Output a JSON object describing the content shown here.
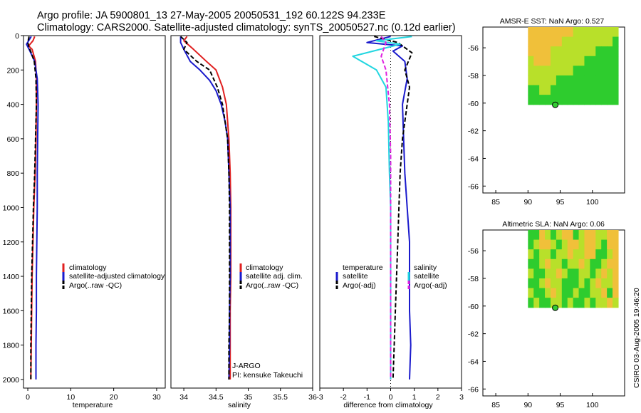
{
  "header": {
    "line1": "Argo profile: JA 5900801_13 27-May-2005 20050531_192 60.122S 94.233E",
    "line2": "Climatology: CARS2000. Satellite-adjusted climatology: synTS_20050527.nc (0.12d earlier)"
  },
  "stamp": "CSIRO 03-Aug-2005 19:46:20",
  "chart_data": [
    {
      "type": "line",
      "name": "temperature-profile",
      "xlabel": "temperature",
      "xlim": [
        -1,
        32
      ],
      "ylim": [
        2050,
        0
      ],
      "xticks": [
        0,
        10,
        20,
        30
      ],
      "yticks": [
        0,
        200,
        400,
        600,
        800,
        1000,
        1200,
        1400,
        1600,
        1800,
        2000
      ],
      "legend": [
        "climatology",
        "satellite-adjusted climatology",
        "Argo(..raw -QC)"
      ],
      "series": [
        {
          "name": "climatology",
          "color": "#e02020",
          "dash": false,
          "points": [
            [
              1.6,
              5
            ],
            [
              1.2,
              30
            ],
            [
              0.2,
              60
            ],
            [
              1.0,
              80
            ],
            [
              1.8,
              150
            ],
            [
              2.0,
              250
            ],
            [
              2.0,
              400
            ],
            [
              1.9,
              600
            ],
            [
              1.7,
              800
            ],
            [
              1.4,
              1000
            ],
            [
              1.2,
              1200
            ],
            [
              1.0,
              1400
            ],
            [
              0.9,
              1600
            ],
            [
              0.8,
              1800
            ],
            [
              0.7,
              2000
            ]
          ]
        },
        {
          "name": "satellite-adjusted climatology",
          "color": "#1a1acc",
          "dash": false,
          "points": [
            [
              0.8,
              5
            ],
            [
              -0.3,
              50
            ],
            [
              0.5,
              90
            ],
            [
              1.6,
              150
            ],
            [
              2.2,
              250
            ],
            [
              2.4,
              400
            ],
            [
              2.3,
              600
            ],
            [
              2.2,
              800
            ],
            [
              2.2,
              1000
            ],
            [
              2.1,
              1200
            ],
            [
              2.0,
              1400
            ],
            [
              2.0,
              1600
            ],
            [
              1.9,
              1800
            ],
            [
              1.9,
              2000
            ]
          ]
        },
        {
          "name": "Argo(..raw -QC)",
          "color": "#000000",
          "dash": true,
          "points": [
            [
              0.3,
              5
            ],
            [
              0.0,
              40
            ],
            [
              0.3,
              70
            ],
            [
              0.8,
              100
            ],
            [
              1.5,
              150
            ],
            [
              1.9,
              250
            ],
            [
              2.0,
              400
            ],
            [
              1.8,
              600
            ],
            [
              1.6,
              800
            ],
            [
              1.3,
              1000
            ],
            [
              1.1,
              1200
            ],
            [
              0.9,
              1400
            ],
            [
              0.8,
              1600
            ],
            [
              0.7,
              1800
            ],
            [
              0.7,
              2000
            ]
          ]
        }
      ]
    },
    {
      "type": "line",
      "name": "salinity-profile",
      "xlabel": "salinity",
      "xlim": [
        33.8,
        36.0
      ],
      "ylim": [
        2050,
        0
      ],
      "xticks": [
        34,
        34.5,
        35,
        35.5,
        36
      ],
      "legend": [
        "climatology",
        "satellite adj. clim.",
        "Argo(..raw -QC)"
      ],
      "annotation": [
        "J-ARGO",
        "PI: kensuke Takeuchi"
      ],
      "series": [
        {
          "name": "climatology",
          "color": "#e02020",
          "dash": false,
          "points": [
            [
              34.05,
              5
            ],
            [
              34.0,
              30
            ],
            [
              34.15,
              80
            ],
            [
              34.35,
              150
            ],
            [
              34.5,
              200
            ],
            [
              34.6,
              300
            ],
            [
              34.66,
              400
            ],
            [
              34.7,
              600
            ],
            [
              34.72,
              800
            ],
            [
              34.73,
              1000
            ],
            [
              34.73,
              1200
            ],
            [
              34.73,
              1400
            ],
            [
              34.72,
              1600
            ],
            [
              34.72,
              1800
            ],
            [
              34.72,
              2000
            ]
          ]
        },
        {
          "name": "satellite adj. clim.",
          "color": "#1a1acc",
          "dash": false,
          "points": [
            [
              33.95,
              5
            ],
            [
              33.95,
              40
            ],
            [
              34.0,
              80
            ],
            [
              34.1,
              150
            ],
            [
              34.25,
              200
            ],
            [
              34.4,
              260
            ],
            [
              34.5,
              320
            ],
            [
              34.58,
              400
            ],
            [
              34.64,
              500
            ],
            [
              34.68,
              600
            ],
            [
              34.7,
              800
            ],
            [
              34.72,
              1000
            ],
            [
              34.72,
              1200
            ],
            [
              34.72,
              1400
            ],
            [
              34.71,
              1600
            ],
            [
              34.71,
              1800
            ],
            [
              34.7,
              2000
            ]
          ]
        },
        {
          "name": "Argo(..raw -QC)",
          "color": "#000000",
          "dash": true,
          "points": [
            [
              33.95,
              5
            ],
            [
              34.05,
              40
            ],
            [
              34.0,
              80
            ],
            [
              34.2,
              150
            ],
            [
              34.4,
              200
            ],
            [
              34.52,
              300
            ],
            [
              34.6,
              400
            ],
            [
              34.64,
              500
            ],
            [
              34.68,
              600
            ],
            [
              34.7,
              800
            ],
            [
              34.71,
              1000
            ],
            [
              34.71,
              1200
            ],
            [
              34.71,
              1400
            ],
            [
              34.71,
              1600
            ],
            [
              34.7,
              1800
            ],
            [
              34.7,
              2000
            ]
          ]
        }
      ]
    },
    {
      "type": "line",
      "name": "difference-profile",
      "xlabel": "difference from climatology",
      "xlim": [
        -3,
        3
      ],
      "ylim": [
        2050,
        0
      ],
      "xticks": [
        -3,
        -2,
        -1,
        0,
        1,
        2,
        3
      ],
      "legend_left": [
        "temperature",
        "satellite",
        "Argo(-adj)"
      ],
      "legend_right": [
        "salinity",
        "satellite",
        "Argo(-adj)"
      ],
      "series": [
        {
          "name": "temperature satellite",
          "color": "#1a1acc",
          "dash": false,
          "points": [
            [
              0.0,
              5
            ],
            [
              -1.0,
              40
            ],
            [
              0.5,
              60
            ],
            [
              0.1,
              90
            ],
            [
              0.6,
              150
            ],
            [
              0.7,
              250
            ],
            [
              0.5,
              400
            ],
            [
              0.55,
              600
            ],
            [
              0.6,
              800
            ],
            [
              0.7,
              1000
            ],
            [
              0.8,
              1200
            ],
            [
              0.8,
              1400
            ],
            [
              0.8,
              1600
            ],
            [
              0.85,
              1800
            ],
            [
              0.8,
              2000
            ]
          ]
        },
        {
          "name": "temperature Argo(-adj)",
          "color": "#000000",
          "dash": true,
          "points": [
            [
              -0.7,
              5
            ],
            [
              0.3,
              40
            ],
            [
              0.9,
              100
            ],
            [
              0.6,
              200
            ],
            [
              0.8,
              300
            ],
            [
              0.7,
              400
            ],
            [
              0.5,
              600
            ],
            [
              0.4,
              800
            ],
            [
              0.35,
              1000
            ],
            [
              0.3,
              1200
            ],
            [
              0.25,
              1400
            ],
            [
              0.2,
              1600
            ],
            [
              0.15,
              1800
            ],
            [
              0.1,
              2000
            ]
          ]
        },
        {
          "name": "salinity satellite",
          "color": "#22d6e0",
          "dash": false,
          "points": [
            [
              0.9,
              5
            ],
            [
              -0.6,
              30
            ],
            [
              0.4,
              50
            ],
            [
              -1.6,
              120
            ],
            [
              -0.6,
              200
            ],
            [
              -0.2,
              300
            ],
            [
              -0.1,
              500
            ],
            [
              -0.05,
              800
            ],
            [
              0.0,
              1000
            ],
            [
              0.0,
              1200
            ],
            [
              0.0,
              1500
            ],
            [
              0.0,
              1800
            ],
            [
              0.0,
              2000
            ]
          ]
        },
        {
          "name": "salinity Argo(-adj)",
          "color": "#e020e0",
          "dash": true,
          "points": [
            [
              -0.4,
              5
            ],
            [
              -0.2,
              40
            ],
            [
              -0.4,
              120
            ],
            [
              -0.2,
              200
            ],
            [
              -0.05,
              400
            ],
            [
              0.0,
              700
            ],
            [
              0.0,
              1000
            ],
            [
              0.0,
              1400
            ],
            [
              0.0,
              1800
            ],
            [
              0.0,
              2000
            ]
          ]
        }
      ]
    },
    {
      "type": "heatmap",
      "name": "sst-map",
      "title": "AMSR-E SST: NaN Argo: 0.527",
      "xlim": [
        83,
        105
      ],
      "ylim": [
        -66.5,
        -54.5
      ],
      "xticks": [
        85,
        90,
        95,
        100
      ],
      "yticks": [
        -56,
        -58,
        -60,
        -62,
        -64,
        -66
      ],
      "data_extent": {
        "lon": [
          90,
          104
        ],
        "lat": [
          -60.1,
          -54.5
        ]
      },
      "argo_position": {
        "lon": 94.233,
        "lat": -60.122
      },
      "grid_rows": [
        "OOOOOOOOYYYYYYYY",
        "OOOOOOYYYYYYYYYG",
        "OOOOYYYYYYYYGGGG",
        "YOOOYYYYYYGGGGGG",
        "YYYYYYYYGGGGGGGG",
        "YYYYYGGGGGGGGGGG",
        "GGYYGGGGGGGGGGGG",
        "GGGGGGGGGGGGGGGG"
      ]
    },
    {
      "type": "heatmap",
      "name": "sla-map",
      "title": "Altimetric SLA: NaN Argo: 0.06",
      "xlim": [
        83,
        105
      ],
      "ylim": [
        -66.5,
        -54.5
      ],
      "xticks": [
        85,
        90,
        95,
        100
      ],
      "yticks": [
        -56,
        -58,
        -60,
        -62,
        -64,
        -66
      ],
      "data_extent": {
        "lon": [
          90,
          104
        ],
        "lat": [
          -60.1,
          -54.5
        ]
      },
      "argo_position": {
        "lon": 94.233,
        "lat": -60.122
      },
      "grid_rows": [
        "GGOYGYOOGYOOYYOO",
        "GYOOYGYOOYOOYGOO",
        "YGYYGYYOYYOOGGYO",
        "GGYOYYGYYOYGGYOO",
        "YGGYYOYGGYYGYOYO",
        "GGYOYYGGGYGYOYYO",
        "YGGYOYGGYGGYYOGO",
        "GYGGYYGYGGYGYYOY"
      ]
    }
  ]
}
